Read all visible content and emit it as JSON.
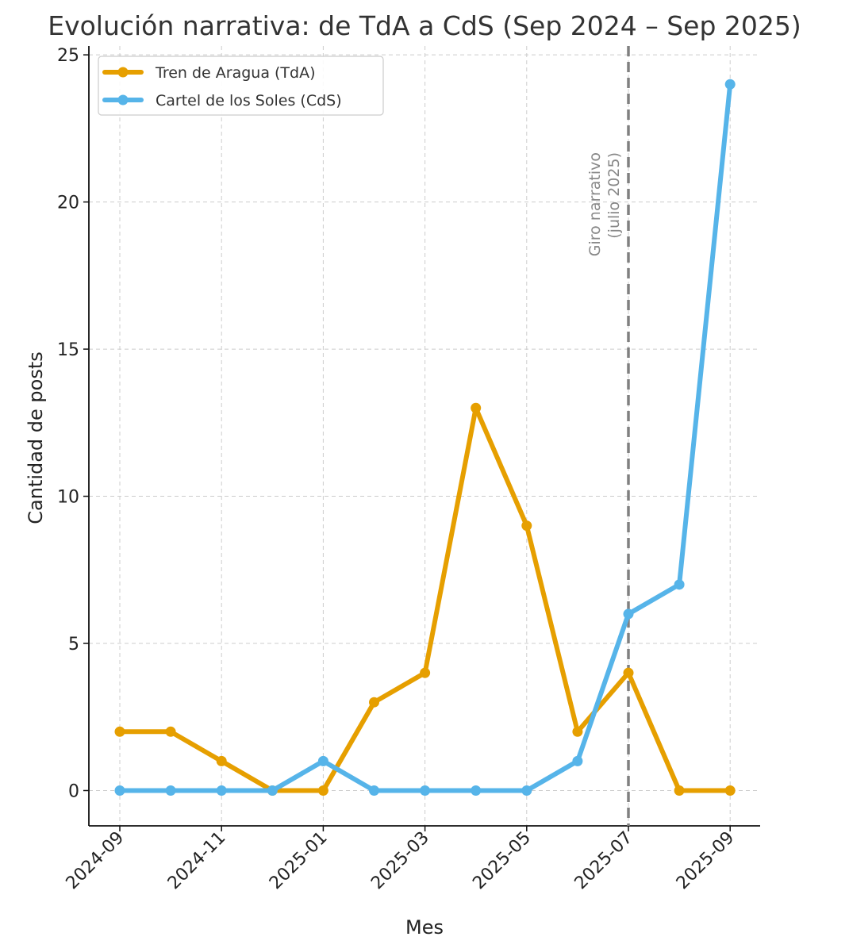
{
  "chart_data": {
    "type": "line",
    "title": "Evolución narrativa: de TdA a CdS (Sep 2024 – Sep 2025)",
    "xlabel": "Mes",
    "ylabel": "Cantidad de posts",
    "ylim": [
      -1.2,
      25.3
    ],
    "grid": true,
    "grid_style": "dashed",
    "legend_position": "upper-left",
    "x": [
      "2024-09",
      "2024-10",
      "2024-11",
      "2024-12",
      "2025-01",
      "2025-02",
      "2025-03",
      "2025-04",
      "2025-05",
      "2025-06",
      "2025-07",
      "2025-08",
      "2025-09"
    ],
    "x_tick_labels": [
      "2024-09",
      "2024-11",
      "2025-01",
      "2025-03",
      "2025-05",
      "2025-07",
      "2025-09"
    ],
    "y_ticks": [
      0,
      5,
      10,
      15,
      20,
      25
    ],
    "series": [
      {
        "name": "Tren de Aragua (TdA)",
        "color": "#e69f00",
        "values": [
          2,
          2,
          1,
          0,
          0,
          3,
          4,
          13,
          9,
          2,
          4,
          0,
          0
        ]
      },
      {
        "name": "Cartel de los Soles (CdS)",
        "color": "#56b4e9",
        "values": [
          0,
          0,
          0,
          0,
          1,
          0,
          0,
          0,
          0,
          1,
          6,
          7,
          24
        ]
      }
    ],
    "annotations": [
      {
        "type": "vertical-line",
        "x": "2025-07",
        "style": "dashed",
        "color": "#808080",
        "lines": [
          "Giro narrativo",
          "(julio 2025)"
        ]
      }
    ]
  }
}
